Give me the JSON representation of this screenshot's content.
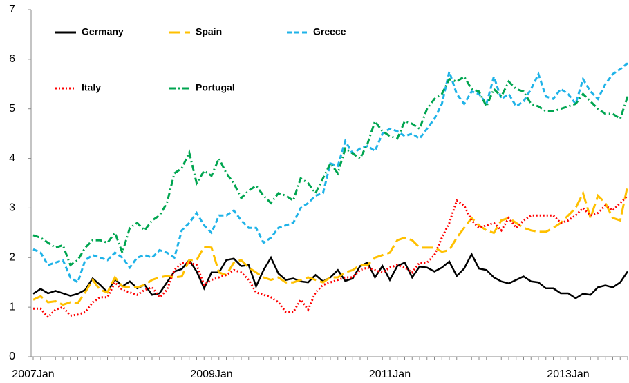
{
  "chart_data": {
    "type": "line",
    "categories": [
      "2007Jan",
      null,
      null,
      null,
      null,
      null,
      null,
      null,
      null,
      null,
      null,
      null,
      null,
      null,
      null,
      null,
      null,
      null,
      null,
      null,
      null,
      null,
      null,
      null,
      "2009Jan",
      null,
      null,
      null,
      null,
      null,
      null,
      null,
      null,
      null,
      null,
      null,
      null,
      null,
      null,
      null,
      null,
      null,
      null,
      null,
      null,
      null,
      null,
      null,
      "2011Jan",
      null,
      null,
      null,
      null,
      null,
      null,
      null,
      null,
      null,
      null,
      null,
      null,
      null,
      null,
      null,
      null,
      null,
      null,
      null,
      null,
      null,
      null,
      null,
      "2013Jan",
      null,
      null,
      null,
      null,
      null,
      null,
      null,
      null
    ],
    "ylim": [
      0,
      7
    ],
    "yticks": [
      0,
      1,
      2,
      3,
      4,
      5,
      6,
      7
    ],
    "series": [
      {
        "name": "Germany",
        "color": "#000000",
        "dash": "solid",
        "values": [
          1.27,
          1.37,
          1.28,
          1.33,
          1.28,
          1.23,
          1.27,
          1.35,
          1.58,
          1.45,
          1.3,
          1.57,
          1.42,
          1.52,
          1.38,
          1.45,
          1.25,
          1.28,
          1.5,
          1.72,
          1.77,
          1.95,
          1.72,
          1.38,
          1.7,
          1.7,
          1.95,
          1.98,
          1.83,
          1.85,
          1.42,
          1.75,
          2.0,
          1.68,
          1.55,
          1.58,
          1.52,
          1.5,
          1.65,
          1.52,
          1.6,
          1.75,
          1.53,
          1.58,
          1.83,
          1.9,
          1.6,
          1.83,
          1.55,
          1.83,
          1.9,
          1.6,
          1.82,
          1.8,
          1.72,
          1.8,
          1.92,
          1.63,
          1.78,
          2.07,
          1.78,
          1.75,
          1.6,
          1.52,
          1.48,
          1.55,
          1.62,
          1.52,
          1.5,
          1.38,
          1.38,
          1.28,
          1.28,
          1.18,
          1.27,
          1.25,
          1.4,
          1.44,
          1.4,
          1.5,
          1.72
        ]
      },
      {
        "name": "Spain",
        "color": "#ffc000",
        "dash": "longdash",
        "values": [
          1.15,
          1.22,
          1.1,
          1.12,
          1.05,
          1.1,
          1.08,
          1.3,
          1.55,
          1.35,
          1.3,
          1.6,
          1.42,
          1.4,
          1.4,
          1.45,
          1.55,
          1.6,
          1.63,
          1.6,
          1.62,
          1.95,
          1.95,
          2.22,
          2.2,
          1.7,
          1.65,
          1.9,
          1.95,
          1.8,
          1.7,
          1.6,
          1.55,
          1.6,
          1.5,
          1.5,
          1.55,
          1.6,
          1.55,
          1.5,
          1.6,
          1.6,
          1.7,
          1.75,
          1.85,
          1.85,
          2.0,
          2.05,
          2.1,
          2.35,
          2.4,
          2.35,
          2.2,
          2.2,
          2.2,
          2.12,
          2.15,
          2.4,
          2.6,
          2.8,
          2.65,
          2.55,
          2.5,
          2.75,
          2.8,
          2.7,
          2.6,
          2.55,
          2.52,
          2.52,
          2.6,
          2.7,
          2.85,
          3.0,
          3.3,
          2.8,
          3.25,
          3.1,
          2.8,
          2.75,
          3.45
        ]
      },
      {
        "name": "Greece",
        "color": "#1fb3e8",
        "dash": "dash",
        "values": [
          2.17,
          2.1,
          1.85,
          1.9,
          1.95,
          1.6,
          1.5,
          1.95,
          2.05,
          2.0,
          1.95,
          2.1,
          2.0,
          1.8,
          2.0,
          2.05,
          2.0,
          2.15,
          2.1,
          2.0,
          2.55,
          2.7,
          2.9,
          2.65,
          2.5,
          2.85,
          2.85,
          2.95,
          2.75,
          2.6,
          2.6,
          2.3,
          2.4,
          2.6,
          2.65,
          2.7,
          3.0,
          3.1,
          3.25,
          3.3,
          3.9,
          3.85,
          4.35,
          4.1,
          4.2,
          4.25,
          4.15,
          4.5,
          4.6,
          4.55,
          4.45,
          4.5,
          4.4,
          4.6,
          4.8,
          5.1,
          5.75,
          5.3,
          5.1,
          5.35,
          5.3,
          5.1,
          5.65,
          5.2,
          5.3,
          5.05,
          5.15,
          5.4,
          5.7,
          5.25,
          5.2,
          5.4,
          5.3,
          5.1,
          5.6,
          5.35,
          5.2,
          5.5,
          5.7,
          5.8,
          5.92
        ]
      },
      {
        "name": "Italy",
        "color": "#ff0000",
        "dash": "dot",
        "values": [
          0.97,
          0.97,
          0.8,
          0.95,
          1.0,
          0.83,
          0.85,
          0.9,
          1.1,
          1.2,
          1.2,
          1.5,
          1.35,
          1.3,
          1.25,
          1.35,
          1.4,
          1.2,
          1.35,
          1.75,
          1.9,
          1.9,
          1.85,
          1.45,
          1.55,
          1.6,
          1.65,
          1.75,
          1.7,
          1.55,
          1.3,
          1.25,
          1.2,
          1.1,
          0.9,
          0.9,
          1.15,
          0.95,
          1.3,
          1.45,
          1.5,
          1.55,
          1.6,
          1.6,
          1.75,
          1.8,
          1.75,
          1.7,
          1.8,
          1.85,
          1.8,
          1.7,
          1.9,
          1.9,
          2.05,
          2.4,
          2.7,
          3.15,
          3.05,
          2.75,
          2.6,
          2.65,
          2.7,
          2.55,
          2.8,
          2.6,
          2.75,
          2.85,
          2.85,
          2.85,
          2.85,
          2.7,
          2.75,
          2.85,
          3.0,
          2.85,
          2.9,
          3.05,
          2.95,
          3.1,
          3.25
        ]
      },
      {
        "name": "Portugal",
        "color": "#00a550",
        "dash": "dashdot",
        "values": [
          2.45,
          2.4,
          2.3,
          2.2,
          2.25,
          1.85,
          1.95,
          2.2,
          2.35,
          2.35,
          2.3,
          2.5,
          2.1,
          2.6,
          2.7,
          2.55,
          2.75,
          2.85,
          3.1,
          3.7,
          3.8,
          4.12,
          3.5,
          3.75,
          3.65,
          4.0,
          3.7,
          3.5,
          3.2,
          3.35,
          3.45,
          3.25,
          3.1,
          3.3,
          3.25,
          3.15,
          3.6,
          3.5,
          3.3,
          3.6,
          3.9,
          3.7,
          4.2,
          4.1,
          4.0,
          4.3,
          4.75,
          4.55,
          4.45,
          4.4,
          4.75,
          4.7,
          4.6,
          5.0,
          5.2,
          5.3,
          5.6,
          5.55,
          5.65,
          5.4,
          5.35,
          5.05,
          5.4,
          5.25,
          5.55,
          5.4,
          5.35,
          5.1,
          5.05,
          4.95,
          4.95,
          5.0,
          5.05,
          5.1,
          5.3,
          5.15,
          5.0,
          4.9,
          4.9,
          4.8,
          5.25
        ]
      }
    ]
  }
}
